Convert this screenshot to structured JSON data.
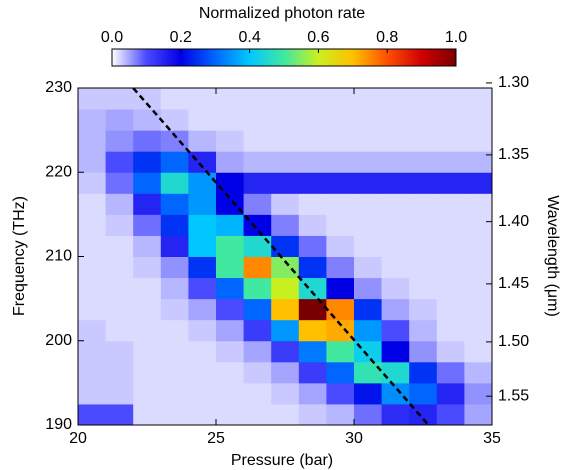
{
  "chart_data": {
    "type": "heatmap",
    "colorbar_title": "Normalized photon rate",
    "clim": [
      0,
      1
    ],
    "cticks": [
      {
        "value": 0,
        "label": "0.0"
      },
      {
        "value": 0.2,
        "label": "0.2"
      },
      {
        "value": 0.4,
        "label": "0.4"
      },
      {
        "value": 0.6,
        "label": "0.6"
      },
      {
        "value": 0.8,
        "label": "0.8"
      },
      {
        "value": 1,
        "label": "1.0"
      }
    ],
    "colormap": [
      "#ffffff",
      "#4a4aff",
      "#0000e6",
      "#0066ff",
      "#00c8ff",
      "#40e8a0",
      "#c8f020",
      "#ffc000",
      "#ff5000",
      "#d00000",
      "#780000"
    ],
    "xlabel": "Pressure (bar)",
    "ylabel": "Frequency (THz)",
    "y2label": "Wavelength (μm)",
    "xlim": [
      20,
      35
    ],
    "xticks": [
      20,
      25,
      30,
      35
    ],
    "ylim": [
      190,
      230
    ],
    "yticks": [
      190,
      200,
      210,
      220,
      230
    ],
    "y2lim": [
      1.5779,
      1.3034
    ],
    "y2scale": "reciprocal",
    "y2ticks": [
      {
        "value": 1.3,
        "label": "1.30"
      },
      {
        "value": 1.35,
        "label": "1.35"
      },
      {
        "value": 1.4,
        "label": "1.40"
      },
      {
        "value": 1.45,
        "label": "1.45"
      },
      {
        "value": 1.5,
        "label": "1.50"
      },
      {
        "value": 1.55,
        "label": "1.55"
      }
    ],
    "x": [
      20.5,
      21.5,
      22.5,
      23.5,
      24.5,
      25.5,
      26.5,
      27.5,
      28.5,
      29.5,
      30.5,
      31.5,
      32.5,
      33.5,
      34.5
    ],
    "y": [
      191.25,
      193.75,
      196.25,
      198.75,
      201.25,
      203.75,
      206.25,
      208.75,
      211.25,
      213.75,
      216.25,
      218.75,
      221.25,
      223.75,
      226.25,
      228.75
    ],
    "z": [
      [
        0.1,
        0.1,
        0.02,
        0.02,
        0.02,
        0.02,
        0.02,
        0.02,
        0.03,
        0.04,
        0.08,
        0.14,
        0.15,
        0.1,
        0.05
      ],
      [
        0.03,
        0.03,
        0.02,
        0.02,
        0.02,
        0.02,
        0.02,
        0.03,
        0.05,
        0.1,
        0.22,
        0.34,
        0.3,
        0.15,
        0.06
      ],
      [
        0.03,
        0.03,
        0.02,
        0.02,
        0.02,
        0.02,
        0.03,
        0.05,
        0.12,
        0.3,
        0.48,
        0.45,
        0.25,
        0.08,
        0.04
      ],
      [
        0.03,
        0.03,
        0.02,
        0.02,
        0.02,
        0.03,
        0.05,
        0.12,
        0.32,
        0.5,
        0.42,
        0.2,
        0.06,
        0.03,
        0.02
      ],
      [
        0.03,
        0.02,
        0.02,
        0.02,
        0.03,
        0.05,
        0.12,
        0.35,
        0.7,
        0.72,
        0.35,
        0.1,
        0.04,
        0.02,
        0.02
      ],
      [
        0.02,
        0.02,
        0.02,
        0.03,
        0.05,
        0.1,
        0.3,
        0.7,
        1.0,
        0.75,
        0.25,
        0.05,
        0.03,
        0.02,
        0.02
      ],
      [
        0.02,
        0.02,
        0.02,
        0.04,
        0.1,
        0.3,
        0.5,
        0.6,
        0.45,
        0.2,
        0.06,
        0.03,
        0.02,
        0.02,
        0.02
      ],
      [
        0.02,
        0.02,
        0.03,
        0.06,
        0.25,
        0.5,
        0.75,
        0.55,
        0.25,
        0.07,
        0.03,
        0.02,
        0.02,
        0.02,
        0.02
      ],
      [
        0.02,
        0.02,
        0.04,
        0.15,
        0.4,
        0.5,
        0.45,
        0.25,
        0.08,
        0.03,
        0.02,
        0.02,
        0.02,
        0.02,
        0.02
      ],
      [
        0.02,
        0.03,
        0.08,
        0.25,
        0.4,
        0.38,
        0.2,
        0.07,
        0.03,
        0.02,
        0.02,
        0.02,
        0.02,
        0.02,
        0.02
      ],
      [
        0.02,
        0.04,
        0.15,
        0.3,
        0.35,
        0.2,
        0.07,
        0.03,
        0.02,
        0.02,
        0.02,
        0.02,
        0.02,
        0.02,
        0.02
      ],
      [
        0.03,
        0.08,
        0.3,
        0.45,
        0.35,
        0.2,
        0.15,
        0.15,
        0.15,
        0.15,
        0.15,
        0.15,
        0.15,
        0.15,
        0.15
      ],
      [
        0.04,
        0.1,
        0.25,
        0.3,
        0.15,
        0.05,
        0.04,
        0.04,
        0.04,
        0.04,
        0.04,
        0.04,
        0.04,
        0.04,
        0.04
      ],
      [
        0.04,
        0.06,
        0.08,
        0.07,
        0.04,
        0.03,
        0.02,
        0.02,
        0.02,
        0.02,
        0.02,
        0.02,
        0.02,
        0.02,
        0.02
      ],
      [
        0.04,
        0.05,
        0.04,
        0.03,
        0.02,
        0.02,
        0.02,
        0.02,
        0.02,
        0.02,
        0.02,
        0.02,
        0.02,
        0.02,
        0.02
      ],
      [
        0.03,
        0.03,
        0.03,
        0.02,
        0.02,
        0.02,
        0.02,
        0.02,
        0.02,
        0.02,
        0.02,
        0.02,
        0.02,
        0.02,
        0.02
      ]
    ],
    "fit_line": {
      "x": [
        22,
        32.7
      ],
      "y": [
        230,
        190
      ],
      "color": "#000000"
    }
  }
}
